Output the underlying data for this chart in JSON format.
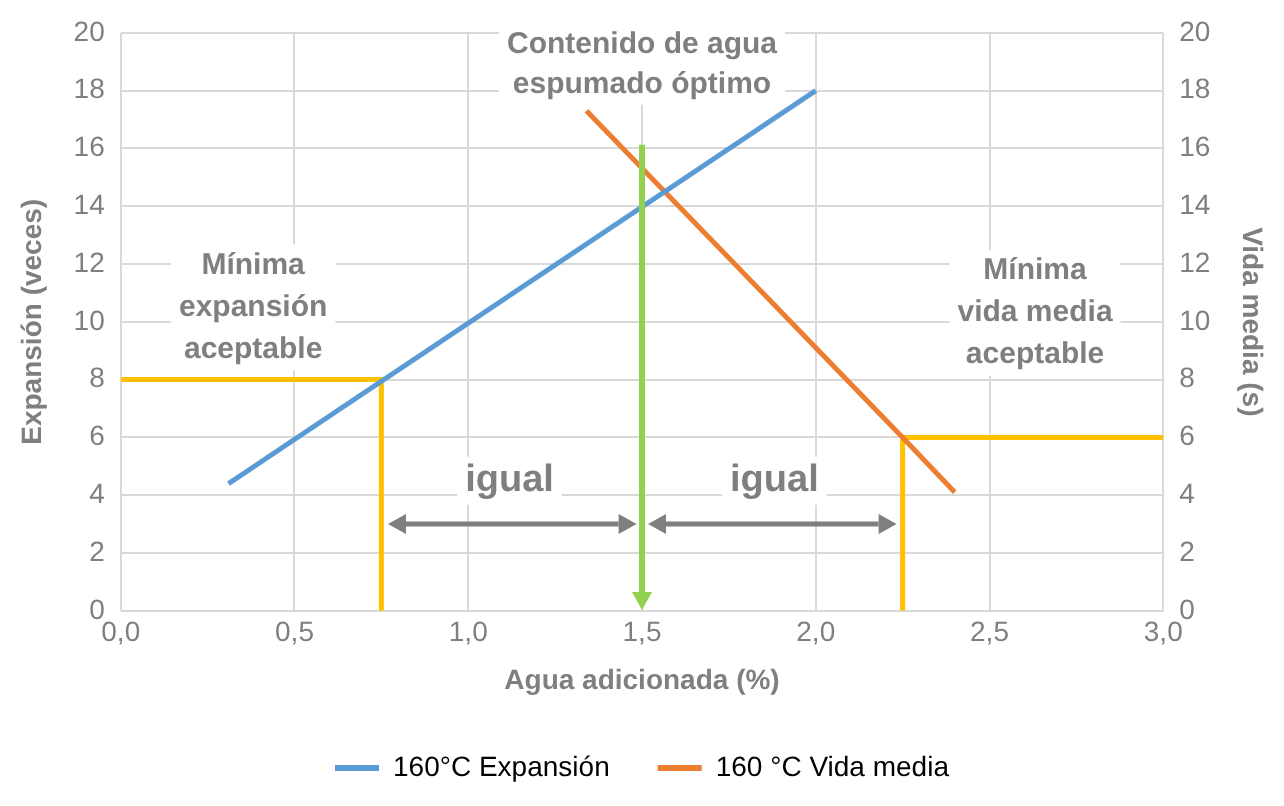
{
  "chart_data": {
    "type": "line",
    "xlabel": "Agua adicionada (%)",
    "ylabel": "Expansión (veces)",
    "y2label": "Vida media (s)",
    "xlim": [
      0,
      3
    ],
    "xticks": [
      {
        "value": 0,
        "label": "0,0"
      },
      {
        "value": 0.5,
        "label": "0,5"
      },
      {
        "value": 1,
        "label": "1,0"
      },
      {
        "value": 1.5,
        "label": "1,5"
      },
      {
        "value": 2,
        "label": "2,0"
      },
      {
        "value": 2.5,
        "label": "2,5"
      },
      {
        "value": 3,
        "label": "3,0"
      }
    ],
    "ylim": [
      0,
      20
    ],
    "yticks": [
      0,
      2,
      4,
      6,
      8,
      10,
      12,
      14,
      16,
      18,
      20
    ],
    "y2lim": [
      0,
      20
    ],
    "y2ticks": [
      0,
      2,
      4,
      6,
      8,
      10,
      12,
      14,
      16,
      18,
      20
    ],
    "grid": true,
    "legend": "bottom",
    "marker": "none",
    "line_style": "solid",
    "series": [
      {
        "name": "160°C Expansión",
        "color": "#5b9bd5",
        "x": [
          0.31,
          2.0
        ],
        "values": [
          4.4,
          18
        ]
      },
      {
        "name": "160 °C Vida media",
        "color": "#ed7d31",
        "axis": "y2",
        "x": [
          1.34,
          2.25,
          2.4
        ],
        "values": [
          17.3,
          6.0,
          4.1
        ]
      },
      {
        "color": "#ffc000",
        "x": [
          0,
          0.75,
          0.75
        ],
        "values": [
          8,
          8,
          0
        ]
      },
      {
        "color": "#ffc000",
        "x": [
          2.25,
          2.25,
          3
        ],
        "values": [
          0,
          6,
          6
        ]
      }
    ],
    "ref_lines": [
      {
        "axis": "x",
        "value": 1.5,
        "label": "Contenido de agua espumado óptimo",
        "color": "#92d050"
      }
    ],
    "annotations": [
      "Mínima expansión aceptable",
      "Mínima vida media aceptable",
      "igual",
      "igual"
    ]
  }
}
